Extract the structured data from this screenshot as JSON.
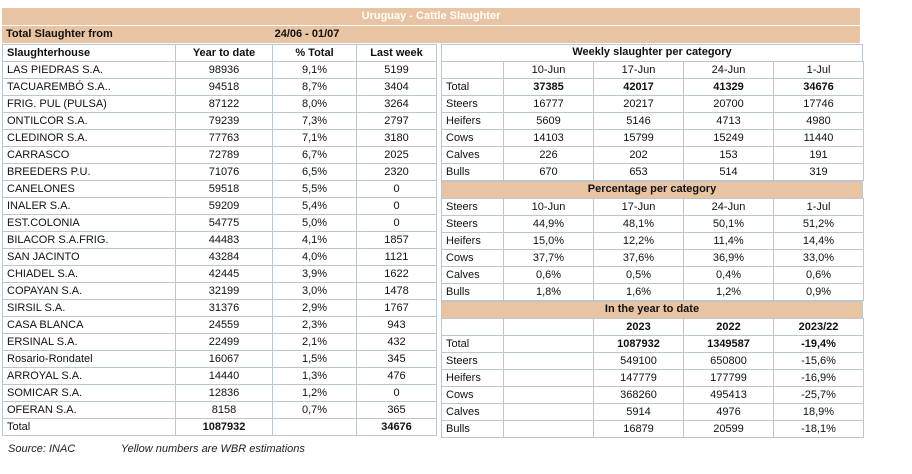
{
  "title": "Uruguay - Cattle Slaughter",
  "period": {
    "label": "Total Slaughter from",
    "value": "24/06 - 01/07"
  },
  "left_table": {
    "headers": [
      "Slaughterhouse",
      "Year to date",
      "% Total",
      "Last week"
    ],
    "rows": [
      [
        "LAS PIEDRAS S.A.",
        "98936",
        "9,1%",
        "5199"
      ],
      [
        "TACUAREMBÓ S.A..",
        "94518",
        "8,7%",
        "3404"
      ],
      [
        "FRIG. PUL (PULSA)",
        "87122",
        "8,0%",
        "3264"
      ],
      [
        "ONTILCOR S.A.",
        "79239",
        "7,3%",
        "2797"
      ],
      [
        "CLEDINOR S.A.",
        "77763",
        "7,1%",
        "3180"
      ],
      [
        "CARRASCO",
        "72789",
        "6,7%",
        "2025"
      ],
      [
        "BREEDERS P.U.",
        "71076",
        "6,5%",
        "2320"
      ],
      [
        "CANELONES",
        "59518",
        "5,5%",
        "0"
      ],
      [
        "INALER S.A.",
        "59209",
        "5,4%",
        "0"
      ],
      [
        "EST.COLONIA",
        "54775",
        "5,0%",
        "0"
      ],
      [
        "BILACOR S.A.FRIG.",
        "44483",
        "4,1%",
        "1857"
      ],
      [
        "SAN JACINTO",
        "43284",
        "4,0%",
        "1121"
      ],
      [
        "CHIADEL S.A.",
        "42445",
        "3,9%",
        "1622"
      ],
      [
        "COPAYAN S.A.",
        "32199",
        "3,0%",
        "1478"
      ],
      [
        "SIRSIL S.A.",
        "31376",
        "2,9%",
        "1767"
      ],
      [
        "CASA BLANCA",
        "24559",
        "2,3%",
        "943"
      ],
      [
        "ERSINAL S.A.",
        "22499",
        "2,1%",
        "432"
      ],
      [
        "Rosario-Rondatel",
        "16067",
        "1,5%",
        "345"
      ],
      [
        "ARROYAL S.A.",
        "14440",
        "1,3%",
        "476"
      ],
      [
        "SOMICAR S.A.",
        "12836",
        "1,2%",
        "0"
      ],
      [
        "OFERAN S.A.",
        "8158",
        "0,7%",
        "365"
      ],
      [
        "Total",
        "1087932",
        "",
        "34676"
      ]
    ]
  },
  "weekly": {
    "title": "Weekly slaughter per category",
    "headers": [
      "",
      "10-Jun",
      "17-Jun",
      "24-Jun",
      "1-Jul"
    ],
    "rows": [
      [
        "Total",
        "37385",
        "42017",
        "41329",
        "34676"
      ],
      [
        "Steers",
        "16777",
        "20217",
        "20700",
        "17746"
      ],
      [
        "Heifers",
        "5609",
        "5146",
        "4713",
        "4980"
      ],
      [
        "Cows",
        "14103",
        "15799",
        "15249",
        "11440"
      ],
      [
        "Calves",
        "226",
        "202",
        "153",
        "191"
      ],
      [
        "Bulls",
        "670",
        "653",
        "514",
        "319"
      ]
    ]
  },
  "percentage": {
    "title": "Percentage per category",
    "headers": [
      "Steers",
      "10-Jun",
      "17-Jun",
      "24-Jun",
      "1-Jul"
    ],
    "rows": [
      [
        "Steers",
        "44,9%",
        "48,1%",
        "50,1%",
        "51,2%"
      ],
      [
        "Heifers",
        "15,0%",
        "12,2%",
        "11,4%",
        "14,4%"
      ],
      [
        "Cows",
        "37,7%",
        "37,6%",
        "36,9%",
        "33,0%"
      ],
      [
        "Calves",
        "0,6%",
        "0,5%",
        "0,4%",
        "0,6%"
      ],
      [
        "Bulls",
        "1,8%",
        "1,6%",
        "1,2%",
        "0,9%"
      ]
    ]
  },
  "ytd": {
    "title": "In the year to date",
    "headers": [
      "",
      "",
      "2023",
      "2022",
      "2023/22"
    ],
    "rows": [
      [
        "Total",
        "",
        "1087932",
        "1349587",
        "-19,4%"
      ],
      [
        "Steers",
        "",
        "549100",
        "650800",
        "-15,6%"
      ],
      [
        "Heifers",
        "",
        "147779",
        "177799",
        "-16,9%"
      ],
      [
        "Cows",
        "",
        "368260",
        "495413",
        "-25,7%"
      ],
      [
        "Calves",
        "",
        "5914",
        "4976",
        "18,9%"
      ],
      [
        "Bulls",
        "",
        "16879",
        "20599",
        "-18,1%"
      ]
    ]
  },
  "footer": {
    "source": "Source: INAC",
    "note": "Yellow numbers are WBR estimations"
  },
  "colors": {
    "band": "#e8c4a2",
    "title_text": "#ffffff",
    "border": "#bcc6cf"
  }
}
